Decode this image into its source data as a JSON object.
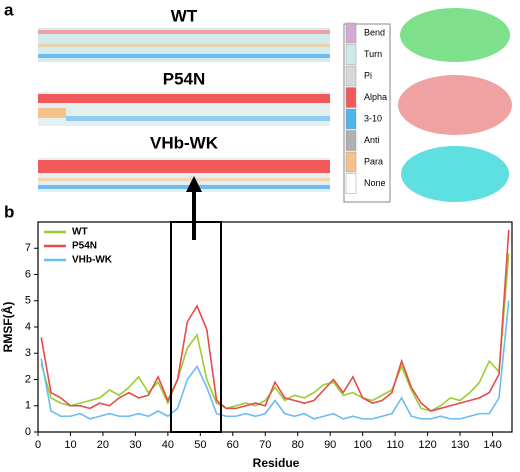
{
  "panel_a": {
    "label": "a",
    "titles": [
      "WT",
      "P54N",
      "VHb-WK"
    ],
    "legend": [
      {
        "label": "Bend",
        "color": "#d2aad2"
      },
      {
        "label": "Turn",
        "color": "#cfe8e8"
      },
      {
        "label": "Pi",
        "color": "#d8d8d8"
      },
      {
        "label": "Alpha",
        "color": "#f05a5a"
      },
      {
        "label": "3-10",
        "color": "#4db5ee"
      },
      {
        "label": "Anti",
        "color": "#b0b0b0"
      },
      {
        "label": "Para",
        "color": "#f5c38a"
      },
      {
        "label": "None",
        "color": "#ffffff"
      }
    ]
  },
  "panel_b_label": "b",
  "chart_data": {
    "type": "line",
    "xlabel": "Residue",
    "ylabel": "RMSF(Å)",
    "x": [
      1,
      4,
      7,
      10,
      13,
      16,
      19,
      22,
      25,
      28,
      31,
      34,
      37,
      40,
      43,
      46,
      49,
      52,
      55,
      58,
      61,
      64,
      67,
      70,
      73,
      76,
      79,
      82,
      85,
      88,
      91,
      94,
      97,
      100,
      103,
      106,
      109,
      112,
      115,
      118,
      121,
      124,
      127,
      130,
      133,
      136,
      139,
      142,
      145
    ],
    "series": [
      {
        "name": "WT",
        "color": "#9acd32",
        "values": [
          2.6,
          1.3,
          1.1,
          1.0,
          1.1,
          1.2,
          1.3,
          1.6,
          1.4,
          1.7,
          2.1,
          1.5,
          1.9,
          1.1,
          2.0,
          3.2,
          3.7,
          2.0,
          1.1,
          0.9,
          1.0,
          1.1,
          1.0,
          1.2,
          1.7,
          1.2,
          1.4,
          1.3,
          1.5,
          1.8,
          1.9,
          1.4,
          1.5,
          1.3,
          1.2,
          1.4,
          1.6,
          2.5,
          1.6,
          0.9,
          0.8,
          1.0,
          1.3,
          1.2,
          1.5,
          1.9,
          2.7,
          2.3,
          6.8
        ]
      },
      {
        "name": "P54N",
        "color": "#e84a4a",
        "values": [
          3.6,
          1.5,
          1.3,
          1.0,
          1.0,
          0.9,
          1.1,
          1.0,
          1.3,
          1.5,
          1.3,
          1.4,
          2.1,
          1.2,
          2.0,
          4.2,
          4.8,
          3.9,
          1.2,
          0.9,
          0.9,
          1.0,
          1.1,
          1.0,
          1.9,
          1.3,
          1.2,
          1.1,
          1.2,
          1.6,
          2.0,
          1.5,
          2.1,
          1.3,
          1.1,
          1.2,
          1.5,
          2.7,
          1.7,
          1.1,
          0.8,
          0.9,
          1.0,
          1.1,
          1.2,
          1.3,
          1.5,
          2.2,
          7.7
        ]
      },
      {
        "name": "VHb-WK",
        "color": "#6cbcf0",
        "values": [
          2.8,
          0.8,
          0.6,
          0.6,
          0.7,
          0.5,
          0.6,
          0.7,
          0.6,
          0.6,
          0.7,
          0.6,
          0.8,
          0.6,
          0.9,
          2.0,
          2.5,
          1.7,
          0.7,
          0.6,
          0.6,
          0.7,
          0.6,
          0.7,
          1.2,
          0.7,
          0.6,
          0.7,
          0.5,
          0.6,
          0.7,
          0.5,
          0.6,
          0.5,
          0.5,
          0.6,
          0.7,
          1.3,
          0.6,
          0.5,
          0.5,
          0.6,
          0.5,
          0.5,
          0.6,
          0.7,
          0.7,
          1.3,
          5.0
        ]
      }
    ],
    "xlim": [
      0,
      146
    ],
    "xticks": [
      0,
      10,
      20,
      30,
      40,
      50,
      60,
      70,
      80,
      90,
      100,
      110,
      120,
      130,
      140
    ],
    "ylim": [
      0,
      8
    ],
    "yticks": [
      0,
      1,
      2,
      3,
      4,
      5,
      6,
      7
    ]
  }
}
